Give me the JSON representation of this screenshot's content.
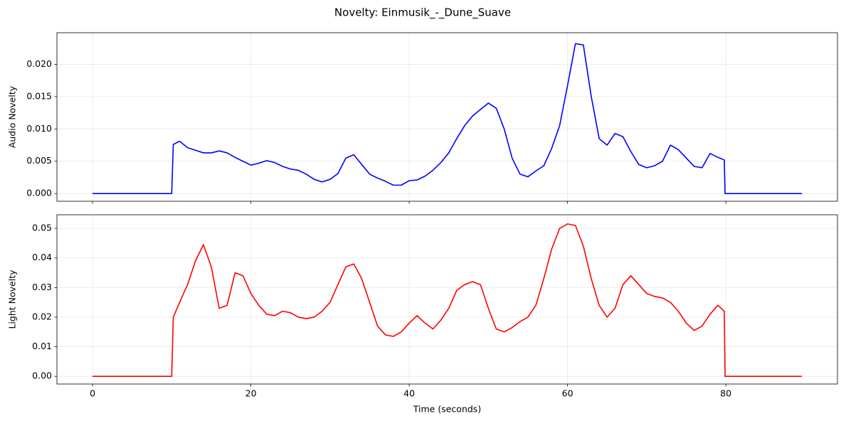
{
  "title": "Novelty: Einmusik_-_Dune_Suave",
  "chart_data": [
    {
      "type": "line",
      "ylabel": "Audio Novelty",
      "grid": true,
      "xlim": [
        -4.5,
        94.1
      ],
      "xticks": [
        0,
        20,
        40,
        60,
        80
      ],
      "ylim": [
        -0.00119,
        0.02489
      ],
      "yticks": [
        {
          "value": 0,
          "label": "0.000"
        },
        {
          "value": 0.005,
          "label": "0.005"
        },
        {
          "value": 0.01,
          "label": "0.010"
        },
        {
          "value": 0.015,
          "label": "0.015"
        },
        {
          "value": 0.02,
          "label": "0.020"
        }
      ],
      "x": [
        0,
        10,
        10.2,
        11,
        12,
        13,
        14,
        15,
        16,
        17,
        18,
        19,
        20,
        21,
        22,
        23,
        24,
        25,
        26,
        27,
        28,
        29,
        30,
        31,
        32,
        33,
        34,
        35,
        36,
        37,
        38,
        39,
        40,
        41,
        42,
        43,
        44,
        45,
        46,
        47,
        48,
        49,
        50,
        51,
        52,
        53,
        54,
        55,
        56,
        57,
        58,
        59,
        60,
        61,
        62,
        63,
        64,
        65,
        66,
        67,
        68,
        69,
        70,
        71,
        72,
        73,
        74,
        75,
        76,
        77,
        78,
        79,
        79.8,
        79.9,
        89.6
      ],
      "series": [
        {
          "name": "Audio Novelty",
          "color": "#0000ff",
          "values": [
            0,
            0,
            0.0076,
            0.0081,
            0.0071,
            0.0067,
            0.0063,
            0.0063,
            0.0066,
            0.0063,
            0.0056,
            0.005,
            0.0044,
            0.0047,
            0.0051,
            0.0048,
            0.0042,
            0.0038,
            0.0036,
            0.003,
            0.0022,
            0.0018,
            0.0022,
            0.0031,
            0.0055,
            0.006,
            0.0045,
            0.003,
            0.0024,
            0.0019,
            0.0013,
            0.0013,
            0.002,
            0.0021,
            0.0027,
            0.0036,
            0.0048,
            0.0063,
            0.0085,
            0.0105,
            0.012,
            0.013,
            0.014,
            0.0132,
            0.01,
            0.0055,
            0.003,
            0.0026,
            0.0035,
            0.0043,
            0.007,
            0.0105,
            0.0167,
            0.0232,
            0.023,
            0.015,
            0.0085,
            0.0075,
            0.0093,
            0.0088,
            0.0065,
            0.0045,
            0.004,
            0.0043,
            0.005,
            0.0075,
            0.0068,
            0.0055,
            0.0042,
            0.004,
            0.0062,
            0.0056,
            0.0052,
            0,
            0
          ]
        }
      ]
    },
    {
      "type": "line",
      "ylabel": "Light Novelty",
      "xlabel": "Time (seconds)",
      "grid": true,
      "xlim": [
        -4.5,
        94.1
      ],
      "xticks": [
        0,
        20,
        40,
        60,
        80
      ],
      "ylim": [
        -0.0026,
        0.0546
      ],
      "yticks": [
        {
          "value": 0,
          "label": "0.00"
        },
        {
          "value": 0.01,
          "label": "0.01"
        },
        {
          "value": 0.02,
          "label": "0.02"
        },
        {
          "value": 0.03,
          "label": "0.03"
        },
        {
          "value": 0.04,
          "label": "0.04"
        },
        {
          "value": 0.05,
          "label": "0.05"
        }
      ],
      "x": [
        0,
        10,
        10.2,
        11,
        12,
        13,
        14,
        15,
        16,
        17,
        18,
        19,
        20,
        21,
        22,
        23,
        24,
        25,
        26,
        27,
        28,
        29,
        30,
        31,
        32,
        33,
        34,
        35,
        36,
        37,
        38,
        39,
        40,
        41,
        42,
        43,
        44,
        45,
        46,
        47,
        48,
        49,
        50,
        51,
        52,
        53,
        54,
        55,
        56,
        57,
        58,
        59,
        60,
        61,
        62,
        63,
        64,
        65,
        66,
        67,
        68,
        69,
        70,
        71,
        72,
        73,
        74,
        75,
        76,
        77,
        78,
        79,
        79.8,
        79.9,
        89.6
      ],
      "series": [
        {
          "name": "Light Novelty",
          "color": "#ff0000",
          "values": [
            0,
            0,
            0.02,
            0.025,
            0.031,
            0.039,
            0.0445,
            0.037,
            0.023,
            0.024,
            0.035,
            0.034,
            0.028,
            0.024,
            0.021,
            0.0205,
            0.022,
            0.0215,
            0.02,
            0.0195,
            0.02,
            0.022,
            0.025,
            0.031,
            0.037,
            0.038,
            0.033,
            0.025,
            0.017,
            0.014,
            0.0135,
            0.015,
            0.018,
            0.0205,
            0.018,
            0.016,
            0.019,
            0.023,
            0.029,
            0.031,
            0.032,
            0.031,
            0.023,
            0.016,
            0.015,
            0.0165,
            0.0185,
            0.02,
            0.024,
            0.033,
            0.043,
            0.05,
            0.0515,
            0.051,
            0.044,
            0.033,
            0.024,
            0.02,
            0.023,
            0.031,
            0.034,
            0.031,
            0.028,
            0.027,
            0.0265,
            0.025,
            0.022,
            0.018,
            0.0155,
            0.017,
            0.021,
            0.024,
            0.022,
            0,
            0
          ]
        }
      ]
    }
  ]
}
